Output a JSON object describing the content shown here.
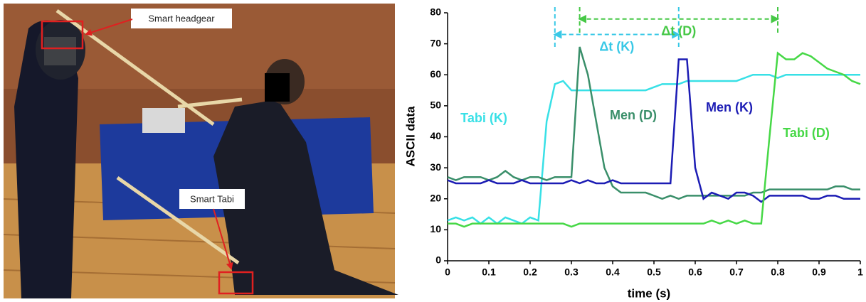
{
  "photo": {
    "labels": [
      "Smart headgear",
      "Smart Tabi"
    ]
  },
  "chart_data": {
    "type": "line",
    "x_label": "time (s)",
    "y_label": "ASCII data",
    "x": [
      0,
      0.02,
      0.04,
      0.06,
      0.08,
      0.1,
      0.12,
      0.14,
      0.16,
      0.18,
      0.2,
      0.22,
      0.24,
      0.26,
      0.28,
      0.3,
      0.32,
      0.34,
      0.36,
      0.38,
      0.4,
      0.42,
      0.44,
      0.46,
      0.48,
      0.5,
      0.52,
      0.54,
      0.56,
      0.58,
      0.6,
      0.62,
      0.64,
      0.66,
      0.68,
      0.7,
      0.72,
      0.74,
      0.76,
      0.78,
      0.8,
      0.82,
      0.84,
      0.86,
      0.88,
      0.9,
      0.92,
      0.94,
      0.96,
      0.98,
      1
    ],
    "series": [
      {
        "name": "Tabi (K)",
        "color": "#38e0e6",
        "values": [
          13,
          14,
          13,
          14,
          12,
          14,
          12,
          14,
          13,
          12,
          14,
          13,
          45,
          57,
          58,
          55,
          55,
          55,
          55,
          55,
          55,
          55,
          55,
          55,
          55,
          56,
          57,
          57,
          57,
          58,
          58,
          58,
          58,
          58,
          58,
          58,
          59,
          60,
          60,
          60,
          59,
          60,
          60,
          60,
          60,
          60,
          60,
          60,
          60,
          60,
          60
        ]
      },
      {
        "name": "Men (D)",
        "color": "#3a8f6a",
        "values": [
          27,
          26,
          27,
          27,
          27,
          26,
          27,
          29,
          27,
          26,
          27,
          27,
          26,
          27,
          27,
          27,
          69,
          60,
          45,
          30,
          24,
          22,
          22,
          22,
          22,
          21,
          20,
          21,
          20,
          21,
          21,
          21,
          21,
          21,
          21,
          21,
          21,
          22,
          22,
          23,
          23,
          23,
          23,
          23,
          23,
          23,
          23,
          24,
          24,
          23,
          23
        ]
      },
      {
        "name": "Men (K)",
        "color": "#1c1cb4",
        "values": [
          26,
          25,
          25,
          25,
          25,
          26,
          25,
          25,
          25,
          26,
          25,
          25,
          25,
          25,
          25,
          26,
          25,
          26,
          25,
          25,
          26,
          25,
          25,
          25,
          25,
          25,
          25,
          25,
          65,
          65,
          30,
          20,
          22,
          21,
          20,
          22,
          22,
          21,
          19,
          21,
          21,
          21,
          21,
          21,
          20,
          20,
          21,
          21,
          20,
          20,
          20
        ]
      },
      {
        "name": "Tabi (D)",
        "color": "#46d846",
        "values": [
          12,
          12,
          11,
          12,
          12,
          12,
          12,
          12,
          12,
          12,
          12,
          12,
          12,
          12,
          12,
          11,
          12,
          12,
          12,
          12,
          12,
          12,
          12,
          12,
          12,
          12,
          12,
          12,
          12,
          12,
          12,
          12,
          13,
          12,
          13,
          12,
          13,
          12,
          12,
          40,
          67,
          65,
          65,
          67,
          66,
          64,
          62,
          61,
          60,
          58,
          57
        ]
      }
    ],
    "annotations": [
      {
        "text": "Δt (K)",
        "x1": 0.26,
        "x2": 0.56,
        "y": 73,
        "color": "#38c8e6"
      },
      {
        "text": "Δt (D)",
        "x1": 0.32,
        "x2": 0.8,
        "y": 78,
        "color": "#46c846"
      }
    ],
    "xlim": [
      0,
      1
    ],
    "ylim": [
      0,
      80
    ],
    "xticks": [
      0,
      0.1,
      0.2,
      0.3,
      0.4,
      0.5,
      0.6,
      0.7,
      0.8,
      0.9,
      1
    ],
    "yticks": [
      0,
      10,
      20,
      30,
      40,
      50,
      60,
      70,
      80
    ]
  }
}
